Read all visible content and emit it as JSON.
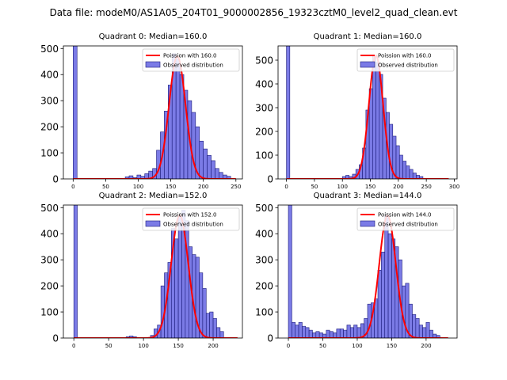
{
  "figure_title": "Data file: modeM0/AS1A05_204T01_9000002856_19323cztM0_level2_quad_clean.evt",
  "colors": {
    "bar_fill": "#7b7be6",
    "bar_edge": "#1a1a7a",
    "poisson_line": "#ff0000"
  },
  "chart_data": [
    {
      "type": "bar",
      "title": "Quadrant 0: Median=160.0",
      "xlim": [
        -15,
        260
      ],
      "ylim": [
        0,
        510
      ],
      "xticks": [
        0,
        50,
        100,
        150,
        200,
        250
      ],
      "yticks": [
        0,
        100,
        200,
        300,
        400,
        500
      ],
      "legend": {
        "position": "top-right",
        "entries": [
          "Poission with 160.0",
          "Observed distribution"
        ]
      },
      "bin_width": 6,
      "bins": [
        {
          "x": 0,
          "y": 510
        },
        {
          "x": 80,
          "y": 8
        },
        {
          "x": 86,
          "y": 12
        },
        {
          "x": 92,
          "y": 5
        },
        {
          "x": 98,
          "y": 15
        },
        {
          "x": 104,
          "y": 10
        },
        {
          "x": 110,
          "y": 20
        },
        {
          "x": 116,
          "y": 30
        },
        {
          "x": 122,
          "y": 40
        },
        {
          "x": 128,
          "y": 110
        },
        {
          "x": 134,
          "y": 180
        },
        {
          "x": 140,
          "y": 260
        },
        {
          "x": 146,
          "y": 360
        },
        {
          "x": 152,
          "y": 480
        },
        {
          "x": 158,
          "y": 460
        },
        {
          "x": 164,
          "y": 400
        },
        {
          "x": 170,
          "y": 340
        },
        {
          "x": 176,
          "y": 300
        },
        {
          "x": 182,
          "y": 255
        },
        {
          "x": 188,
          "y": 200
        },
        {
          "x": 194,
          "y": 145
        },
        {
          "x": 200,
          "y": 115
        },
        {
          "x": 206,
          "y": 90
        },
        {
          "x": 212,
          "y": 70
        },
        {
          "x": 218,
          "y": 40
        },
        {
          "x": 224,
          "y": 25
        },
        {
          "x": 230,
          "y": 15
        },
        {
          "x": 236,
          "y": 10
        }
      ],
      "poisson": {
        "mean": 160.0,
        "peak": 470,
        "range": [
          0,
          250
        ]
      }
    },
    {
      "type": "bar",
      "title": "Quadrant 1: Median=160.0",
      "xlim": [
        -15,
        305
      ],
      "ylim": [
        0,
        560
      ],
      "xticks": [
        0,
        50,
        100,
        150,
        200,
        250,
        300
      ],
      "yticks": [
        0,
        100,
        200,
        300,
        400,
        500
      ],
      "legend": {
        "position": "top-right",
        "entries": [
          "Poission with 160.0",
          "Observed distribution"
        ]
      },
      "bin_width": 6,
      "bins": [
        {
          "x": 0,
          "y": 560
        },
        {
          "x": 100,
          "y": 10
        },
        {
          "x": 106,
          "y": 15
        },
        {
          "x": 112,
          "y": 10
        },
        {
          "x": 118,
          "y": 20
        },
        {
          "x": 124,
          "y": 40
        },
        {
          "x": 130,
          "y": 60
        },
        {
          "x": 136,
          "y": 130
        },
        {
          "x": 142,
          "y": 290
        },
        {
          "x": 148,
          "y": 380
        },
        {
          "x": 154,
          "y": 520
        },
        {
          "x": 160,
          "y": 490
        },
        {
          "x": 166,
          "y": 440
        },
        {
          "x": 172,
          "y": 340
        },
        {
          "x": 178,
          "y": 280
        },
        {
          "x": 184,
          "y": 230
        },
        {
          "x": 190,
          "y": 180
        },
        {
          "x": 196,
          "y": 140
        },
        {
          "x": 202,
          "y": 100
        },
        {
          "x": 208,
          "y": 75
        },
        {
          "x": 214,
          "y": 55
        },
        {
          "x": 220,
          "y": 40
        },
        {
          "x": 226,
          "y": 25
        },
        {
          "x": 232,
          "y": 15
        },
        {
          "x": 238,
          "y": 10
        }
      ],
      "poisson": {
        "mean": 160.0,
        "peak": 520,
        "range": [
          0,
          290
        ]
      }
    },
    {
      "type": "bar",
      "title": "Quadrant 2: Median=152.0",
      "xlim": [
        -15,
        242
      ],
      "ylim": [
        0,
        510
      ],
      "xticks": [
        0,
        50,
        100,
        150,
        200
      ],
      "yticks": [
        0,
        100,
        200,
        300,
        400,
        500
      ],
      "legend": {
        "position": "top-right",
        "entries": [
          "Poission with 152.0",
          "Observed distribution"
        ]
      },
      "bin_width": 5,
      "bins": [
        {
          "x": 0,
          "y": 510
        },
        {
          "x": 75,
          "y": 5
        },
        {
          "x": 80,
          "y": 8
        },
        {
          "x": 85,
          "y": 5
        },
        {
          "x": 110,
          "y": 10
        },
        {
          "x": 115,
          "y": 35
        },
        {
          "x": 120,
          "y": 50
        },
        {
          "x": 125,
          "y": 200
        },
        {
          "x": 130,
          "y": 250
        },
        {
          "x": 135,
          "y": 290
        },
        {
          "x": 140,
          "y": 420
        },
        {
          "x": 145,
          "y": 380
        },
        {
          "x": 150,
          "y": 470
        },
        {
          "x": 155,
          "y": 490
        },
        {
          "x": 160,
          "y": 450
        },
        {
          "x": 165,
          "y": 350
        },
        {
          "x": 170,
          "y": 320
        },
        {
          "x": 175,
          "y": 310
        },
        {
          "x": 180,
          "y": 250
        },
        {
          "x": 185,
          "y": 190
        },
        {
          "x": 190,
          "y": 95
        },
        {
          "x": 195,
          "y": 100
        },
        {
          "x": 200,
          "y": 75
        },
        {
          "x": 205,
          "y": 40
        },
        {
          "x": 210,
          "y": 25
        }
      ],
      "poisson": {
        "mean": 152.0,
        "peak": 470,
        "range": [
          0,
          235
        ]
      }
    },
    {
      "type": "bar",
      "title": "Quadrant 3: Median=144.0",
      "xlim": [
        -15,
        245
      ],
      "ylim": [
        0,
        510
      ],
      "xticks": [
        0,
        50,
        100,
        150,
        200
      ],
      "yticks": [
        0,
        100,
        200,
        300,
        400,
        500
      ],
      "legend": {
        "position": "top-right",
        "entries": [
          "Poission with 144.0",
          "Observed distribution"
        ]
      },
      "bin_width": 5,
      "bins": [
        {
          "x": 0,
          "y": 510
        },
        {
          "x": 5,
          "y": 60
        },
        {
          "x": 10,
          "y": 50
        },
        {
          "x": 15,
          "y": 60
        },
        {
          "x": 20,
          "y": 45
        },
        {
          "x": 25,
          "y": 40
        },
        {
          "x": 30,
          "y": 30
        },
        {
          "x": 35,
          "y": 20
        },
        {
          "x": 40,
          "y": 25
        },
        {
          "x": 45,
          "y": 20
        },
        {
          "x": 50,
          "y": 15
        },
        {
          "x": 55,
          "y": 30
        },
        {
          "x": 60,
          "y": 25
        },
        {
          "x": 65,
          "y": 20
        },
        {
          "x": 70,
          "y": 35
        },
        {
          "x": 75,
          "y": 35
        },
        {
          "x": 80,
          "y": 30
        },
        {
          "x": 85,
          "y": 50
        },
        {
          "x": 90,
          "y": 40
        },
        {
          "x": 95,
          "y": 50
        },
        {
          "x": 100,
          "y": 40
        },
        {
          "x": 105,
          "y": 55
        },
        {
          "x": 110,
          "y": 75
        },
        {
          "x": 115,
          "y": 130
        },
        {
          "x": 120,
          "y": 135
        },
        {
          "x": 125,
          "y": 150
        },
        {
          "x": 130,
          "y": 260
        },
        {
          "x": 135,
          "y": 330
        },
        {
          "x": 140,
          "y": 470
        },
        {
          "x": 145,
          "y": 400
        },
        {
          "x": 150,
          "y": 380
        },
        {
          "x": 155,
          "y": 350
        },
        {
          "x": 160,
          "y": 300
        },
        {
          "x": 165,
          "y": 200
        },
        {
          "x": 170,
          "y": 210
        },
        {
          "x": 175,
          "y": 130
        },
        {
          "x": 180,
          "y": 90
        },
        {
          "x": 185,
          "y": 75
        },
        {
          "x": 190,
          "y": 50
        },
        {
          "x": 195,
          "y": 40
        },
        {
          "x": 200,
          "y": 60
        },
        {
          "x": 205,
          "y": 30
        },
        {
          "x": 210,
          "y": 15
        },
        {
          "x": 215,
          "y": 10
        }
      ],
      "poisson": {
        "mean": 144.0,
        "peak": 470,
        "range": [
          0,
          232
        ]
      }
    }
  ]
}
